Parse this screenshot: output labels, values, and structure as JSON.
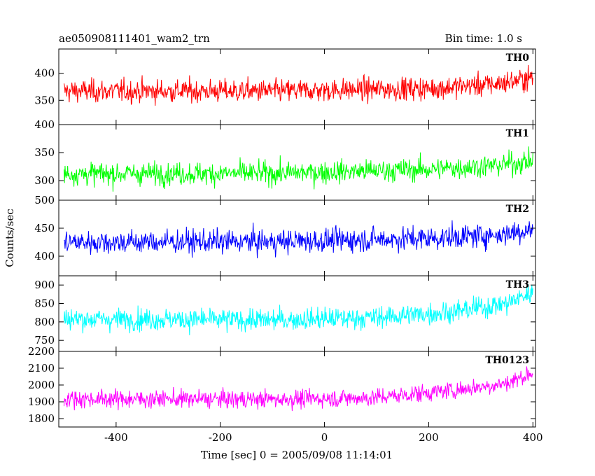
{
  "chart_data": {
    "type": "line",
    "title_left": "ae050908111401_wam2_trn",
    "title_right": "Bin time: 1.0 s",
    "xlabel": "Time [sec] 0 = 2005/09/08 11:14:01",
    "ylabel": "Counts/sec",
    "xlim": [
      -510,
      405
    ],
    "xticks": [
      -400,
      -200,
      0,
      200,
      400
    ],
    "bin_time_s": 1.0,
    "grid": false,
    "panels": [
      {
        "name": "TH0",
        "color": "#ff0000",
        "ylim": [
          305,
          445
        ],
        "yticks": [
          350,
          400
        ],
        "trend": [
          [
            -500,
            367
          ],
          [
            -100,
            367
          ],
          [
            200,
            372
          ],
          [
            330,
            380
          ],
          [
            400,
            392
          ]
        ],
        "noise": 20
      },
      {
        "name": "TH1",
        "color": "#00ff00",
        "ylim": [
          265,
          400
        ],
        "yticks": [
          300,
          350,
          400
        ],
        "trend": [
          [
            -500,
            312
          ],
          [
            -100,
            313
          ],
          [
            200,
            320
          ],
          [
            330,
            327
          ],
          [
            400,
            335
          ]
        ],
        "noise": 19
      },
      {
        "name": "TH2",
        "color": "#0000ff",
        "ylim": [
          365,
          500
        ],
        "yticks": [
          400,
          450,
          500
        ],
        "trend": [
          [
            -500,
            425
          ],
          [
            -100,
            426
          ],
          [
            200,
            432
          ],
          [
            330,
            438
          ],
          [
            400,
            448
          ]
        ],
        "noise": 20
      },
      {
        "name": "TH3",
        "color": "#00ffff",
        "ylim": [
          720,
          925
        ],
        "yticks": [
          750,
          800,
          850,
          900
        ],
        "trend": [
          [
            -500,
            808
          ],
          [
            -100,
            805
          ],
          [
            100,
            812
          ],
          [
            250,
            828
          ],
          [
            350,
            850
          ],
          [
            400,
            880
          ]
        ],
        "noise": 28
      },
      {
        "name": "TH0123",
        "color": "#ff00ff",
        "ylim": [
          1750,
          2200
        ],
        "yticks": [
          1800,
          1900,
          2000,
          2100,
          2200
        ],
        "trend": [
          [
            -500,
            1918
          ],
          [
            -100,
            1915
          ],
          [
            100,
            1925
          ],
          [
            250,
            1970
          ],
          [
            350,
            2010
          ],
          [
            400,
            2075
          ]
        ],
        "noise": 50
      }
    ]
  }
}
